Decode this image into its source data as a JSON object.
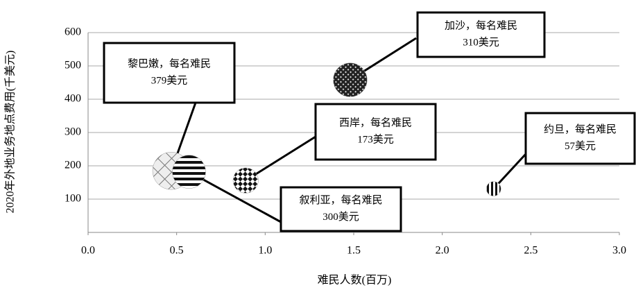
{
  "chart_data": {
    "type": "bubble",
    "x_label": "难民人数(百万)",
    "y_label": "2020年外地业务地点费用(千美元)",
    "series": [
      {
        "names": [
          "黎巴嫩，每名难民",
          "叙利亚，每名难民",
          "西岸，每名难民",
          "加沙，每名难民",
          "约旦，每名难民"
        ],
        "x": [
          0.47,
          0.57,
          0.89,
          1.48,
          2.29
        ],
        "values": [
          185,
          182,
          156,
          458,
          131
        ],
        "sizes": [
          379,
          300,
          173,
          310,
          57
        ],
        "size_labels": [
          "379美元",
          "300美元",
          "173美元",
          "310美元",
          "57美元"
        ]
      }
    ],
    "xlim": [
      0,
      3
    ],
    "xticks": [
      {
        "value": 0,
        "label": "0.0"
      },
      {
        "value": 0.5,
        "label": "0.5"
      },
      {
        "value": 1,
        "label": "1.0"
      },
      {
        "value": 1.5,
        "label": "1.5"
      },
      {
        "value": 2,
        "label": "2.0"
      },
      {
        "value": 2.5,
        "label": "2.5"
      },
      {
        "value": 3,
        "label": "3.0"
      }
    ],
    "ylim": [
      0,
      600
    ],
    "yticks": [
      100,
      200,
      300,
      400,
      500,
      600
    ],
    "grid": true
  }
}
